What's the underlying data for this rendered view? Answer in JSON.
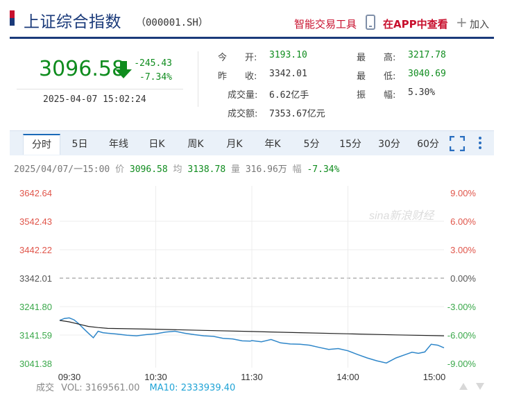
{
  "header": {
    "title": "上证综合指数",
    "code": "（000001.SH）",
    "tools_label": "智能交易工具",
    "app_label": "在APP中查看",
    "add_label": "加入"
  },
  "quote": {
    "price": "3096.58",
    "change": "-245.43",
    "change_pct": "-7.34%",
    "datetime": "2025-04-07 15:02:24",
    "stats": [
      {
        "label": "今　　开:",
        "value": "3193.10",
        "color": "green"
      },
      {
        "label": "昨　　收:",
        "value": "3342.01",
        "color": "plain"
      },
      {
        "label": "成交量:",
        "value": "6.62亿手",
        "color": "plain"
      },
      {
        "label": "成交额:",
        "value": "7353.67亿元",
        "color": "plain"
      },
      {
        "label": "最　　高:",
        "value": "3217.78",
        "color": "green"
      },
      {
        "label": "最　　低:",
        "value": "3040.69",
        "color": "green"
      },
      {
        "label": "振　　幅:",
        "value": "5.30%",
        "color": "plain"
      }
    ]
  },
  "tabs": [
    "分时",
    "5日",
    "年线",
    "日K",
    "周K",
    "月K",
    "年K",
    "5分",
    "15分",
    "30分",
    "60分"
  ],
  "active_tab": 0,
  "info_line": {
    "time": "2025/04/07/一15:00",
    "price_label": "价",
    "price": "3096.58",
    "avg_label": "均",
    "avg": "3138.78",
    "vol_label": "量",
    "vol": "316.96万",
    "pct_label": "幅",
    "pct": "-7.34%"
  },
  "volume_line": {
    "label": "成交",
    "vol": "VOL: 3169561.00",
    "ma": "MA10: 2333939.40"
  },
  "colors": {
    "brand": "#1a3a7a",
    "up": "#e0554a",
    "down": "#0f8c1e",
    "price_line": "#2e86c9",
    "avg_line": "#222222"
  },
  "chart_data": {
    "type": "line",
    "y_labels_left": [
      "3642.64",
      "3542.43",
      "3442.22",
      "3342.01",
      "3241.80",
      "3141.59",
      "3041.38"
    ],
    "y_labels_right": [
      "9.00%",
      "6.00%",
      "3.00%",
      "0.00%",
      "-3.00%",
      "-6.00%",
      "-9.00%"
    ],
    "x_labels": [
      "09:30",
      "10:30",
      "11:30",
      "14:00",
      "15:00"
    ],
    "ylim": [
      3041.38,
      3642.64
    ],
    "reference": 3342.01,
    "watermark": "sina新浪财经",
    "series": [
      {
        "name": "价",
        "x": [
          0,
          3,
          6,
          9,
          12,
          15,
          18,
          21,
          24,
          27,
          30,
          36,
          42,
          48,
          54,
          60,
          66,
          72,
          78,
          84,
          90,
          96,
          102,
          108,
          114,
          119,
          120,
          126,
          132,
          138,
          144,
          150,
          156,
          162,
          168,
          174,
          180,
          186,
          192,
          198,
          204,
          210,
          216,
          220,
          224,
          228,
          232,
          236,
          240
        ],
        "y": [
          3193.1,
          3200.0,
          3202.0,
          3195.0,
          3181.0,
          3164.0,
          3148.0,
          3132.0,
          3155.0,
          3150.0,
          3148.0,
          3145.0,
          3141.0,
          3139.0,
          3143.0,
          3146.0,
          3152.0,
          3155.0,
          3148.0,
          3143.0,
          3139.0,
          3137.0,
          3130.0,
          3128.0,
          3121.0,
          3120.0,
          3122.0,
          3118.0,
          3126.0,
          3114.0,
          3110.0,
          3109.0,
          3106.0,
          3098.0,
          3091.0,
          3094.0,
          3086.0,
          3073.0,
          3061.0,
          3051.0,
          3043.0,
          3061.0,
          3073.0,
          3081.0,
          3077.0,
          3082.0,
          3109.0,
          3106.0,
          3096.58
        ]
      },
      {
        "name": "均",
        "x": [
          0,
          6,
          12,
          18,
          24,
          30,
          60,
          90,
          120,
          150,
          180,
          210,
          240
        ],
        "y": [
          3193.1,
          3188.0,
          3180.0,
          3172.0,
          3168.0,
          3165.0,
          3162.0,
          3158.0,
          3154.0,
          3150.0,
          3146.0,
          3142.0,
          3138.78
        ]
      }
    ]
  }
}
